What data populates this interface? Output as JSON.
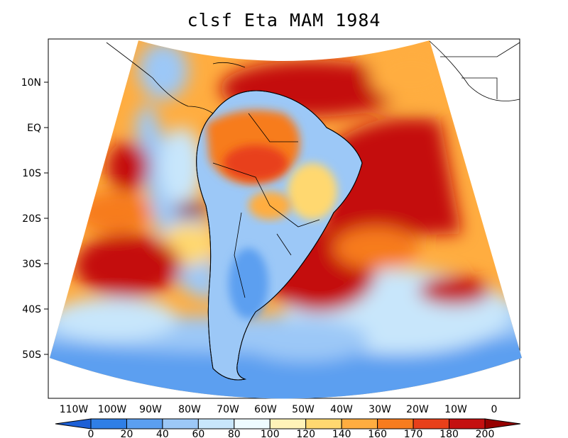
{
  "title": "clsf Eta MAM 1984",
  "latitude_labels": [
    "10N",
    "EQ",
    "10S",
    "20S",
    "30S",
    "40S",
    "50S"
  ],
  "longitude_labels": [
    "110W",
    "100W",
    "90W",
    "80W",
    "70W",
    "60W",
    "50W",
    "40W",
    "30W",
    "20W",
    "10W",
    "0"
  ],
  "colorbar": {
    "ticks": [
      "0",
      "20",
      "40",
      "60",
      "80",
      "100",
      "120",
      "140",
      "160",
      "170",
      "180",
      "200"
    ],
    "colors": [
      "#1c5fd6",
      "#2f7fe6",
      "#5b9ff0",
      "#9cc8f7",
      "#c8e6fb",
      "#eefbff",
      "#fff3b8",
      "#ffd870",
      "#ffad40",
      "#f77c1e",
      "#e8401a",
      "#c41010",
      "#960000"
    ]
  }
}
